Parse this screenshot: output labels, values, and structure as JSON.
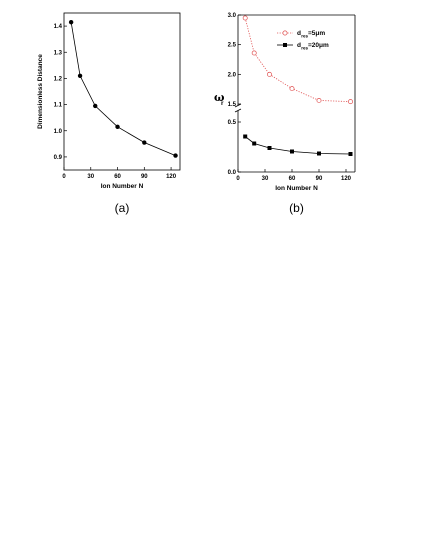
{
  "chart_data": [
    {
      "panel": "(a)",
      "type": "line",
      "xlabel": "Ion Number  N",
      "ylabel": "Dimensionless Distance",
      "xlim": [
        0,
        130
      ],
      "ylim": [
        0.85,
        1.45
      ],
      "xticks": [
        0,
        30,
        60,
        90,
        120
      ],
      "yticks": [
        0.9,
        1.0,
        1.1,
        1.2,
        1.3,
        1.4
      ],
      "ytick_labels": [
        "0.9",
        "1.0",
        "1.1",
        "1.2",
        "1.3",
        "1.4"
      ],
      "series": [
        {
          "x": [
            8,
            18,
            35,
            60,
            90,
            125
          ],
          "y": [
            1.415,
            1.21,
            1.095,
            1.015,
            0.955,
            0.905
          ],
          "color": "#000000",
          "marker": "filled-circle",
          "line": "solid"
        }
      ]
    },
    {
      "panel": "(b)",
      "type": "line",
      "xlabel": "Ion Number  N",
      "ylabel": "ω",
      "ylabel_sub": "r",
      "xlim": [
        0,
        130
      ],
      "broken_y_axis": true,
      "lower_ylim": [
        0.0,
        0.6
      ],
      "upper_ylim": [
        1.5,
        3.0
      ],
      "lower_yticks": [
        0.0,
        0.5
      ],
      "lower_ytick_labels": [
        "0.0",
        "0.5"
      ],
      "upper_yticks": [
        1.5,
        2.0,
        2.5,
        3.0
      ],
      "upper_ytick_labels": [
        "1.5",
        "2.0",
        "2.5",
        "3.0"
      ],
      "xticks": [
        0,
        30,
        60,
        90,
        120
      ],
      "legend_position": "top-right",
      "series": [
        {
          "name_main": "d",
          "name_sub": "res",
          "name_rest": "=5μm",
          "x": [
            8,
            18,
            35,
            60,
            90,
            125
          ],
          "y": [
            2.95,
            2.36,
            2.0,
            1.76,
            1.56,
            1.54
          ],
          "color": "#e05050",
          "marker": "open-circle",
          "line": "dotted"
        },
        {
          "name_main": "d",
          "name_sub": "res",
          "name_rest": "=20μm",
          "x": [
            8,
            18,
            35,
            60,
            90,
            125
          ],
          "y": [
            0.355,
            0.285,
            0.24,
            0.205,
            0.185,
            0.18
          ],
          "color": "#000000",
          "marker": "filled-square",
          "line": "solid"
        }
      ]
    }
  ]
}
